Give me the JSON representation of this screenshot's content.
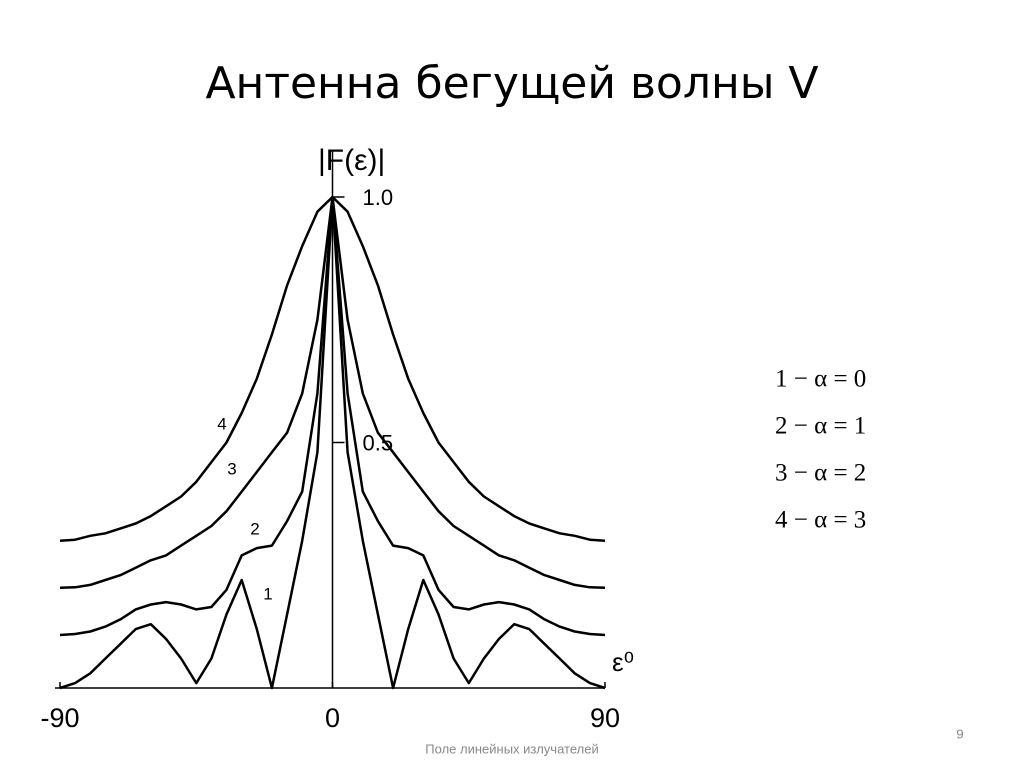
{
  "chart_data": {
    "type": "line",
    "title": "Антенна бегущей волны V",
    "y_label": "|F(ε)|",
    "x_label": "ε⁰",
    "x": [
      -90,
      -85,
      -80,
      -75,
      -70,
      -65,
      -60,
      -55,
      -50,
      -45,
      -40,
      -35,
      -30,
      -25,
      -20,
      -15,
      -10,
      -5,
      0,
      5,
      10,
      15,
      20,
      25,
      30,
      35,
      40,
      45,
      50,
      55,
      60,
      65,
      70,
      75,
      80,
      85,
      90
    ],
    "xlim": [
      -90,
      90
    ],
    "xticks": [
      -90,
      0,
      90
    ],
    "ylim": [
      0,
      1
    ],
    "yticks": [
      {
        "value": 1,
        "label": "1.0"
      },
      0.5
    ],
    "series": [
      {
        "name": "1",
        "color": "#000000",
        "values": [
          0.0,
          0.01,
          0.03,
          0.06,
          0.09,
          0.12,
          0.13,
          0.1,
          0.06,
          0.01,
          0.06,
          0.15,
          0.22,
          0.12,
          0.0,
          0.15,
          0.3,
          0.48,
          1.0,
          0.48,
          0.3,
          0.15,
          0.0,
          0.12,
          0.22,
          0.15,
          0.06,
          0.01,
          0.06,
          0.1,
          0.13,
          0.12,
          0.09,
          0.06,
          0.03,
          0.01,
          0.0
        ]
      },
      {
        "name": "2",
        "color": "#000000",
        "values": [
          0.108,
          0.11,
          0.115,
          0.125,
          0.14,
          0.16,
          0.17,
          0.175,
          0.17,
          0.16,
          0.165,
          0.2,
          0.27,
          0.285,
          0.29,
          0.34,
          0.4,
          0.6,
          1.0,
          0.6,
          0.4,
          0.34,
          0.29,
          0.285,
          0.27,
          0.2,
          0.165,
          0.16,
          0.17,
          0.175,
          0.17,
          0.16,
          0.14,
          0.125,
          0.115,
          0.11,
          0.108
        ]
      },
      {
        "name": "3",
        "color": "#000000",
        "values": [
          0.204,
          0.205,
          0.21,
          0.22,
          0.23,
          0.245,
          0.26,
          0.27,
          0.29,
          0.31,
          0.33,
          0.36,
          0.4,
          0.44,
          0.48,
          0.52,
          0.6,
          0.75,
          1.0,
          0.75,
          0.6,
          0.52,
          0.48,
          0.44,
          0.4,
          0.36,
          0.33,
          0.31,
          0.29,
          0.27,
          0.26,
          0.245,
          0.23,
          0.22,
          0.21,
          0.205,
          0.204
        ]
      },
      {
        "name": "4",
        "color": "#000000",
        "values": [
          0.3,
          0.302,
          0.31,
          0.315,
          0.325,
          0.335,
          0.35,
          0.37,
          0.39,
          0.42,
          0.46,
          0.5,
          0.56,
          0.63,
          0.72,
          0.82,
          0.9,
          0.97,
          1.0,
          0.97,
          0.9,
          0.82,
          0.72,
          0.63,
          0.56,
          0.5,
          0.46,
          0.42,
          0.39,
          0.37,
          0.35,
          0.335,
          0.325,
          0.315,
          0.31,
          0.302,
          0.3
        ]
      }
    ],
    "notes": [
      "1 − α = 0",
      "2 − α = 1",
      "3 − α = 2",
      "4 − α = 3"
    ]
  },
  "footer": "Поле линейных излучателей",
  "page_number": "9"
}
